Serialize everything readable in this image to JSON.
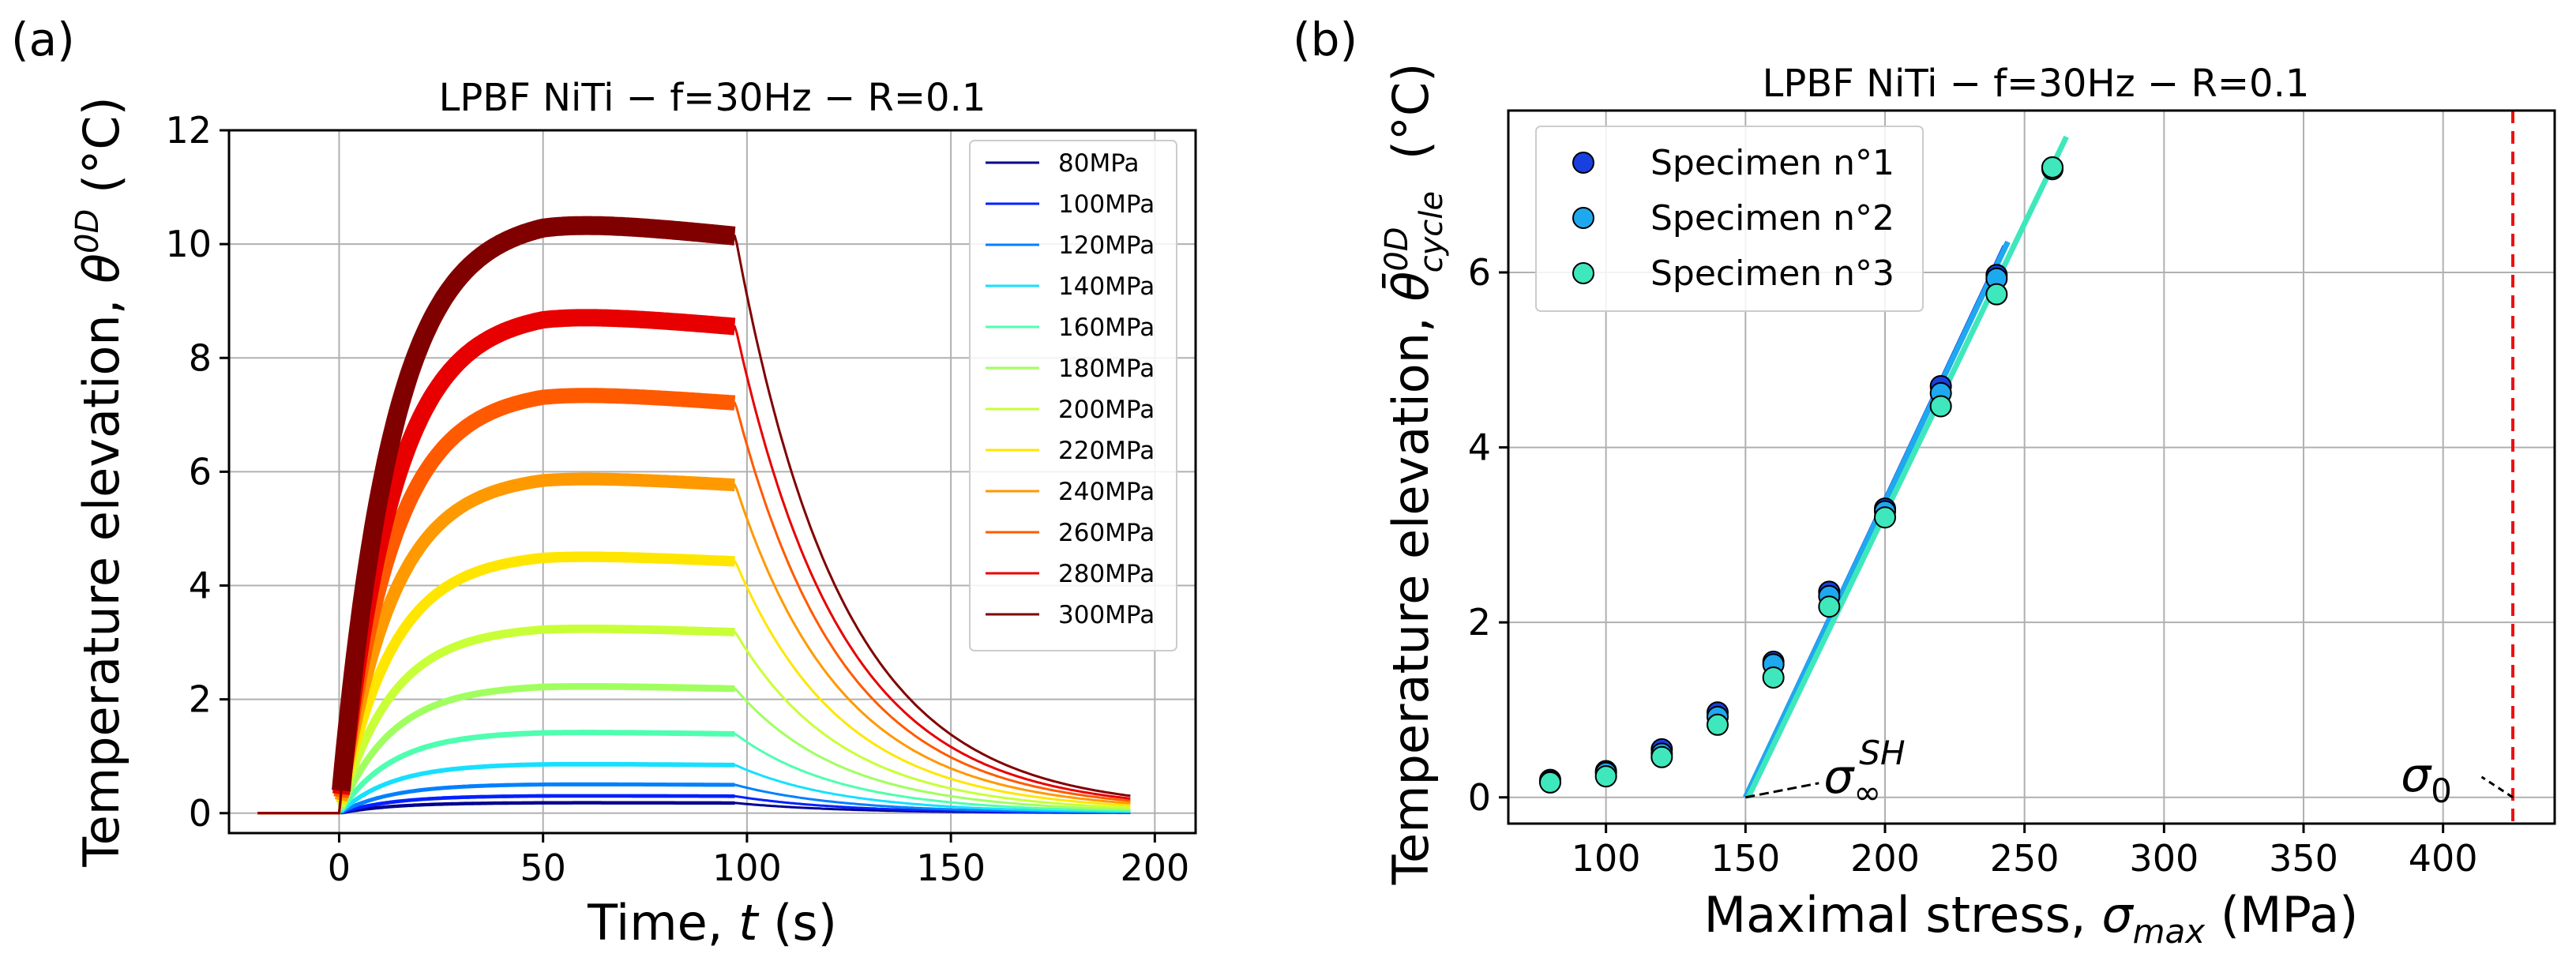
{
  "chart_data": [
    {
      "type": "line",
      "panel_label": "(a)",
      "title": "LPBF NiTi − f=30Hz − R=0.1",
      "xlabel_prefix": "Time, ",
      "xlabel_var": "t",
      "xlabel_suffix": " (s)",
      "ylabel_prefix": "Temperature elevation, ",
      "ylabel_var": "θ",
      "ylabel_sup": "0D",
      "ylabel_suffix": " (°C)",
      "xlim": [
        -27,
        210
      ],
      "ylim": [
        -0.35,
        12
      ],
      "xticks": [
        "0",
        "50",
        "100",
        "150",
        "200"
      ],
      "yticks": [
        "0",
        "2",
        "4",
        "6",
        "8",
        "10",
        "12"
      ],
      "grid": true,
      "legend_position": "upper-right",
      "loading_end_s": 97,
      "time_end_s": 194,
      "series": [
        {
          "name": "80MPa",
          "color": "#00008f",
          "plateau": 0.18
        },
        {
          "name": "100MPa",
          "color": "#0020ff",
          "plateau": 0.3
        },
        {
          "name": "120MPa",
          "color": "#0080ff",
          "plateau": 0.5
        },
        {
          "name": "140MPa",
          "color": "#17dfff",
          "plateau": 0.85
        },
        {
          "name": "160MPa",
          "color": "#4effb0",
          "plateau": 1.4
        },
        {
          "name": "180MPa",
          "color": "#a0ff5f",
          "plateau": 2.2
        },
        {
          "name": "200MPa",
          "color": "#c8ff37",
          "plateau": 3.2
        },
        {
          "name": "220MPa",
          "color": "#ffe600",
          "plateau": 4.45
        },
        {
          "name": "240MPa",
          "color": "#ff9900",
          "plateau": 5.8
        },
        {
          "name": "260MPa",
          "color": "#ff5a00",
          "plateau": 7.25
        },
        {
          "name": "280MPa",
          "color": "#e80000",
          "plateau": 8.6
        },
        {
          "name": "300MPa",
          "color": "#800000",
          "plateau": 10.2
        }
      ]
    },
    {
      "type": "scatter",
      "panel_label": "(b)",
      "title": "LPBF NiTi − f=30Hz − R=0.1",
      "xlabel_prefix": "Maximal stress, ",
      "xlabel_var": "σ",
      "xlabel_sub": "max",
      "xlabel_suffix": " (MPa)",
      "ylabel_prefix": "Temperature elevation, ",
      "ylabel_var": "θ̄",
      "ylabel_sup": "0D",
      "ylabel_sub": "cycle",
      "ylabel_suffix": " (°C)",
      "xlim": [
        65,
        440
      ],
      "ylim": [
        -0.3,
        7.85
      ],
      "xticks": [
        "100",
        "150",
        "200",
        "250",
        "300",
        "350",
        "400"
      ],
      "yticks": [
        "0",
        "2",
        "4",
        "6"
      ],
      "grid": true,
      "legend_position": "upper-left",
      "x": [
        80,
        100,
        120,
        140,
        160,
        180,
        200,
        220,
        240,
        260
      ],
      "series": [
        {
          "name": "Specimen n°1",
          "color": "#1a3fe0",
          "values": [
            0.2,
            0.3,
            0.55,
            0.97,
            1.55,
            2.35,
            3.3,
            4.7,
            5.97,
            7.2
          ]
        },
        {
          "name": "Specimen n°2",
          "color": "#1ea8ef",
          "values": [
            0.18,
            0.28,
            0.5,
            0.92,
            1.52,
            2.3,
            3.27,
            4.62,
            5.93,
            7.18
          ]
        },
        {
          "name": "Specimen n°3",
          "color": "#3ee8bc",
          "values": [
            0.17,
            0.24,
            0.46,
            0.83,
            1.37,
            2.18,
            3.2,
            4.47,
            5.75,
            7.2
          ]
        }
      ],
      "fit_lines": [
        {
          "color": "#1a3fe0",
          "from": [
            150,
            0
          ],
          "to": [
            243,
            6.3
          ]
        },
        {
          "color": "#1ea8ef",
          "from": [
            150,
            0
          ],
          "to": [
            244,
            6.35
          ]
        },
        {
          "color": "#3ee8bc",
          "from": [
            151,
            0
          ],
          "to": [
            265,
            7.55
          ]
        }
      ],
      "vline": {
        "x": 425,
        "color": "#ee1111"
      },
      "annotations": [
        {
          "var": "σ",
          "sub": "∞",
          "sup": "SH",
          "point": [
            150,
            0
          ],
          "text_at": [
            178,
            0.0
          ]
        },
        {
          "var": "σ",
          "sub": "0",
          "point": [
            425,
            0
          ],
          "text_at": [
            394,
            0.18
          ]
        }
      ]
    }
  ]
}
